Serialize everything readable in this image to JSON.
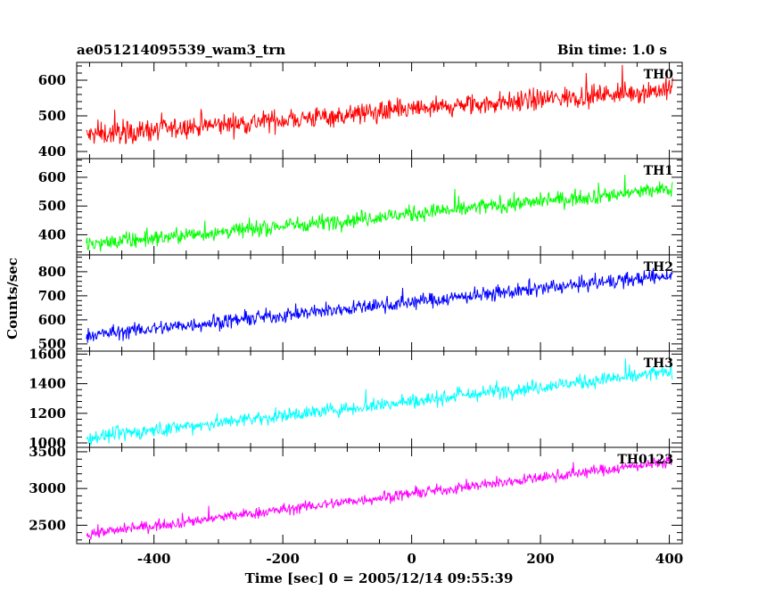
{
  "chart_data": {
    "type": "line",
    "title": "ae051214095539_wam3_trn",
    "subtitle": "Bin time: 1.0 s",
    "xlabel": "Time [sec] 0 = 2005/12/14 09:55:39",
    "ylabel": "Counts/sec",
    "xlim": [
      -520,
      420
    ],
    "x_ticks": [
      -400,
      -200,
      0,
      200,
      400
    ],
    "panels": [
      {
        "name": "TH0",
        "color": "#ff0000",
        "ylim": [
          380,
          650
        ],
        "y_ticks": [
          400,
          500,
          600
        ],
        "x_range": [
          -505,
          405
        ],
        "start": 445,
        "end": 575,
        "noise": 22,
        "spike_max": 650
      },
      {
        "name": "TH1",
        "color": "#00ff00",
        "ylim": [
          330,
          665
        ],
        "y_ticks": [
          400,
          500,
          600
        ],
        "x_range": [
          -505,
          405
        ],
        "start": 365,
        "end": 560,
        "noise": 20,
        "spike_max": 660
      },
      {
        "name": "TH2",
        "color": "#0000ff",
        "ylim": [
          470,
          870
        ],
        "y_ticks": [
          500,
          600,
          700,
          800
        ],
        "x_range": [
          -505,
          405
        ],
        "start": 535,
        "end": 785,
        "noise": 22,
        "spike_max": 860
      },
      {
        "name": "TH3",
        "color": "#00ffff",
        "ylim": [
          970,
          1620
        ],
        "y_ticks": [
          1000,
          1200,
          1400,
          1600
        ],
        "x_range": [
          -505,
          405
        ],
        "start": 1035,
        "end": 1480,
        "noise": 35,
        "spike_max": 1610
      },
      {
        "name": "TH0123",
        "color": "#ff00ff",
        "ylim": [
          2250,
          3560
        ],
        "y_ticks": [
          2500,
          3000,
          3500
        ],
        "x_range": [
          -505,
          405
        ],
        "start": 2380,
        "end": 3370,
        "noise": 55,
        "spike_max": 3540
      }
    ]
  }
}
